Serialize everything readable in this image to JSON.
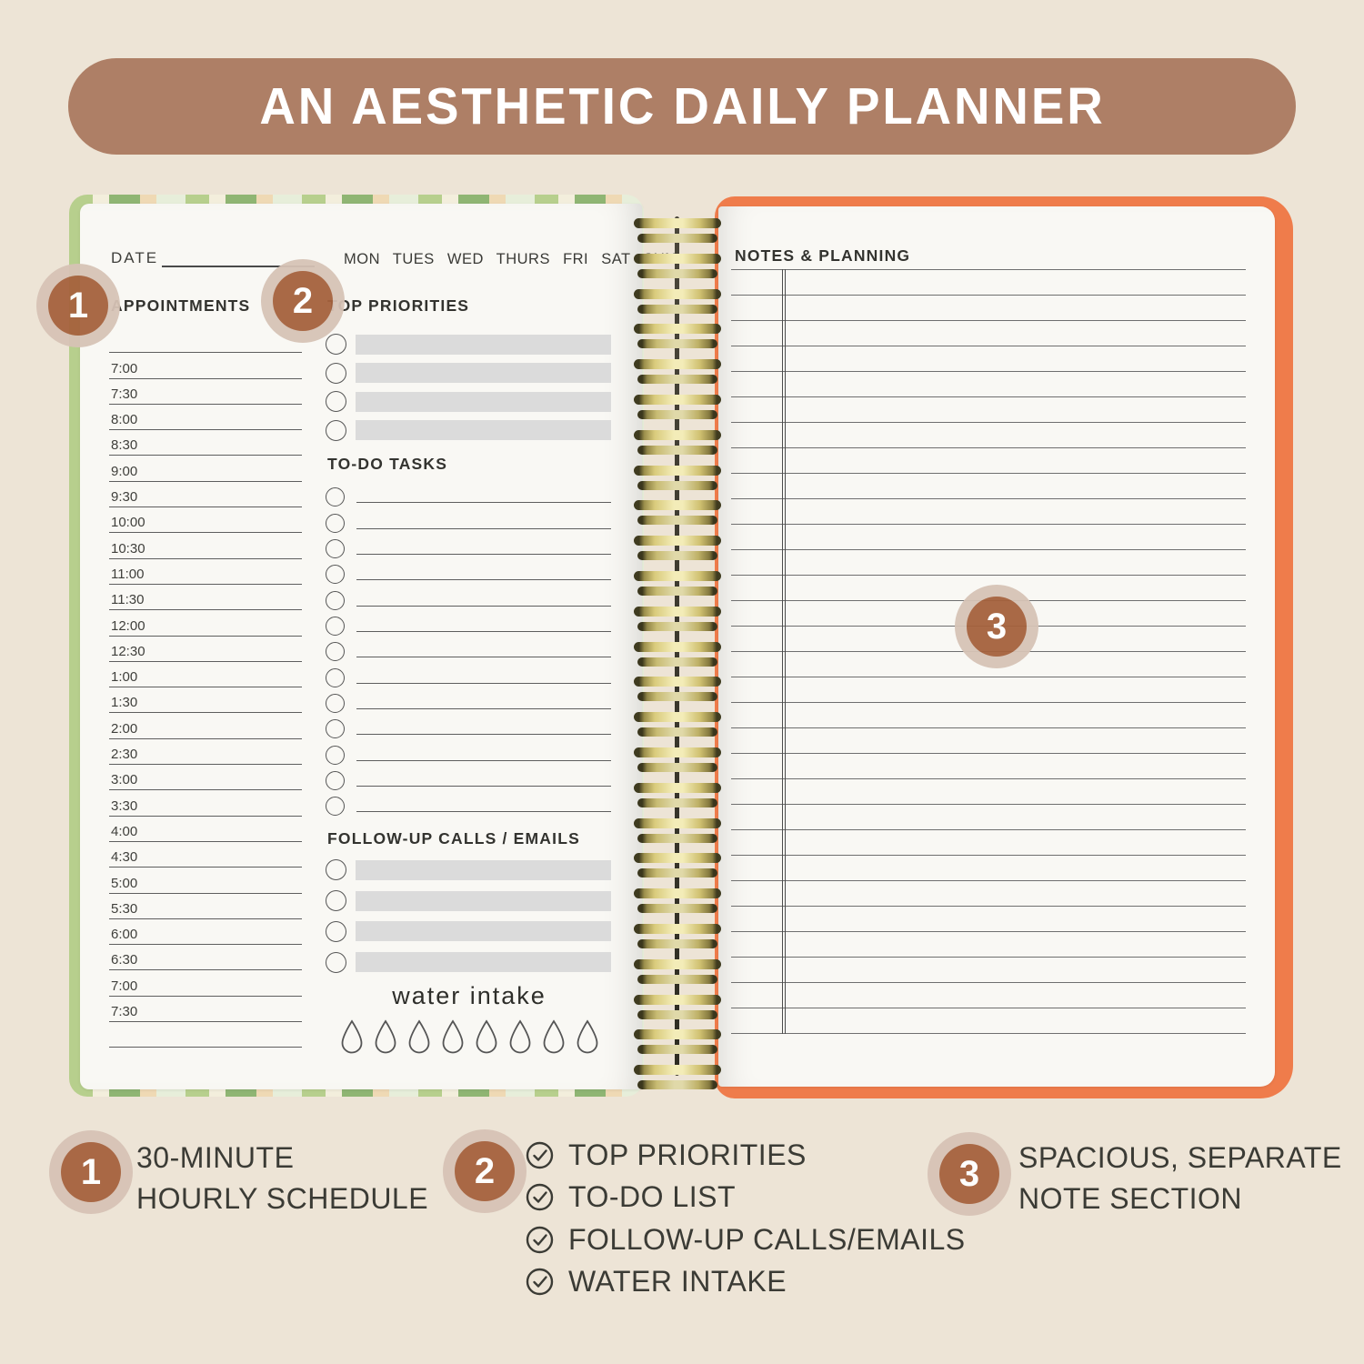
{
  "banner": {
    "title": "AN AESTHETIC DAILY PLANNER"
  },
  "planner": {
    "left_page": {
      "date_label": "DATE",
      "weekdays": [
        "MON",
        "TUES",
        "WED",
        "THURS",
        "FRI",
        "SAT",
        "SUN"
      ],
      "appointments_heading": "APPOINTMENTS",
      "appointment_times": [
        "",
        "7:00",
        "7:30",
        "8:00",
        "8:30",
        "9:00",
        "9:30",
        "10:00",
        "10:30",
        "11:00",
        "11:30",
        "12:00",
        "12:30",
        "1:00",
        "1:30",
        "2:00",
        "2:30",
        "3:00",
        "3:30",
        "4:00",
        "4:30",
        "5:00",
        "5:30",
        "6:00",
        "6:30",
        "7:00",
        "7:30",
        ""
      ],
      "top_priorities_heading": "TOP PRIORITIES",
      "top_priorities_rows": 4,
      "todo_heading": "TO-DO TASKS",
      "todo_rows": 13,
      "follow_up_heading": "FOLLOW-UP CALLS / EMAILS",
      "follow_up_rows": 4,
      "water_intake_label": "water intake",
      "water_intake_drops": 8
    },
    "right_page": {
      "heading": "NOTES & PLANNING",
      "ruled_lines": 31
    },
    "spiral_coils": 25
  },
  "callouts": [
    {
      "number": "1"
    },
    {
      "number": "2"
    },
    {
      "number": "3"
    }
  ],
  "legend": [
    {
      "number": "1",
      "lines": [
        "30-MINUTE",
        "HOURLY SCHEDULE"
      ]
    },
    {
      "number": "2",
      "features": [
        "TOP PRIORITIES",
        "TO-DO LIST",
        "FOLLOW-UP CALLS/EMAILS",
        "WATER INTAKE"
      ]
    },
    {
      "number": "3",
      "lines": [
        "SPACIOUS, SEPARATE",
        "NOTE SECTION"
      ]
    }
  ],
  "colors": {
    "background": "#EDE4D6",
    "banner": "#AE7F66",
    "banner_text": "#FFFFFF",
    "callout_inner": "#A5613C",
    "callout_halo": "#D7C3B6",
    "page": "#F9F8F4",
    "rule_line": "#6F6F6F",
    "gray_bar": "#DBDBDB",
    "right_cover_orange": "#EF7C4B",
    "coil_gold": "#D8C97A",
    "text_dark": "#3B3B35"
  }
}
